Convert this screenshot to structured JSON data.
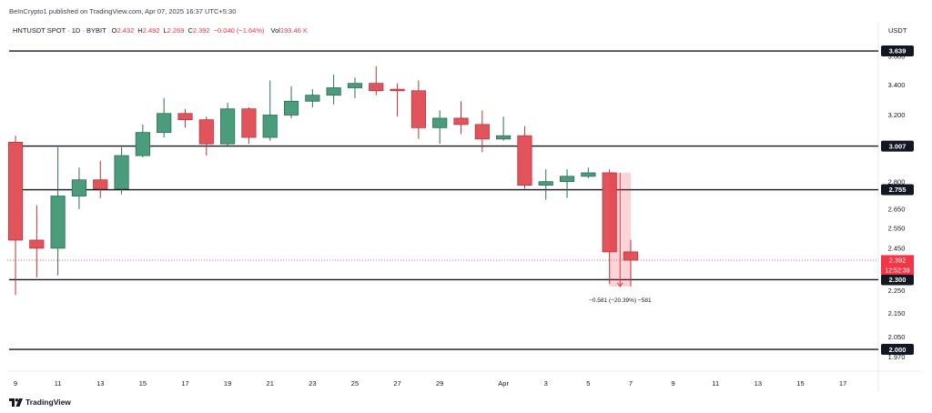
{
  "header": {
    "published_line": "BeInCrypto1 published on TradingView.com, Apr 07, 2025 16:37 UTC+5:30",
    "symbol_line": "HNTUSDT SPOT · 1D · BYBIT",
    "ohlc": [
      {
        "label": "O",
        "value": "2.432"
      },
      {
        "label": "H",
        "value": "2.492"
      },
      {
        "label": "L",
        "value": "2.269"
      },
      {
        "label": "C",
        "value": "2.392"
      }
    ],
    "change": "−0.040 (−1.64%)",
    "volume_label": "Vol",
    "volume_value": "193.46 K"
  },
  "price_axis": {
    "currency": "USDT"
  },
  "footer": {
    "brand": "TradingView",
    "logo_icon": "tradingview-logo-icon"
  },
  "colors": {
    "up": "#4a9c7c",
    "up_border": "#2e6e56",
    "down": "#e2545c",
    "down_border": "#b5373e",
    "level_line": "#131722",
    "level_badge": "#131722",
    "last_price": "#f23645",
    "measure": "#f23645",
    "header_value": "#f23645"
  },
  "chart_data": {
    "type": "candlestick",
    "yscale": "log",
    "ylim": [
      1.925,
      3.713
    ],
    "xlim": [
      "2025-03-09",
      "2025-04-18"
    ],
    "grid": false,
    "x_ticks": [
      {
        "date": "2025-03-09",
        "label": "9"
      },
      {
        "date": "2025-03-11",
        "label": "11"
      },
      {
        "date": "2025-03-13",
        "label": "13"
      },
      {
        "date": "2025-03-15",
        "label": "15"
      },
      {
        "date": "2025-03-17",
        "label": "17"
      },
      {
        "date": "2025-03-19",
        "label": "19"
      },
      {
        "date": "2025-03-21",
        "label": "21"
      },
      {
        "date": "2025-03-23",
        "label": "23"
      },
      {
        "date": "2025-03-25",
        "label": "25"
      },
      {
        "date": "2025-03-27",
        "label": "27"
      },
      {
        "date": "2025-03-29",
        "label": "29"
      },
      {
        "date": "2025-04-01",
        "label": "Apr"
      },
      {
        "date": "2025-04-03",
        "label": "3"
      },
      {
        "date": "2025-04-05",
        "label": "5"
      },
      {
        "date": "2025-04-07",
        "label": "7"
      },
      {
        "date": "2025-04-09",
        "label": "9"
      },
      {
        "date": "2025-04-11",
        "label": "11"
      },
      {
        "date": "2025-04-13",
        "label": "13"
      },
      {
        "date": "2025-04-15",
        "label": "15"
      },
      {
        "date": "2025-04-17",
        "label": "17"
      }
    ],
    "y_ticks": [
      "3.600",
      "3.400",
      "3.200",
      "2.800",
      "2.650",
      "2.550",
      "2.450",
      "2.250",
      "2.150",
      "2.050",
      "1.970"
    ],
    "levels": [
      {
        "value": 3.639,
        "label": "3.639"
      },
      {
        "value": 3.007,
        "label": "3.007"
      },
      {
        "value": 2.755,
        "label": "2.755"
      },
      {
        "value": 2.3,
        "label": "2.300"
      },
      {
        "value": 2.0,
        "label": "2.000"
      }
    ],
    "last_price": {
      "value": 2.392,
      "label": "2.392",
      "countdown": "12:52:39"
    },
    "measure": {
      "from_date": "2025-04-06",
      "to_date": "2025-04-07",
      "from": 2.85,
      "to": 2.269,
      "label": "−0.581 (−20.39%) −581"
    },
    "candles": [
      {
        "date": "2025-03-09",
        "open": 3.03,
        "high": 3.07,
        "low": 2.23,
        "close": 2.49
      },
      {
        "date": "2025-03-10",
        "open": 2.49,
        "high": 2.67,
        "low": 2.31,
        "close": 2.45
      },
      {
        "date": "2025-03-11",
        "open": 2.45,
        "high": 3.0,
        "low": 2.32,
        "close": 2.72
      },
      {
        "date": "2025-03-12",
        "open": 2.72,
        "high": 2.88,
        "low": 2.65,
        "close": 2.81
      },
      {
        "date": "2025-03-13",
        "open": 2.81,
        "high": 2.92,
        "low": 2.71,
        "close": 2.76
      },
      {
        "date": "2025-03-14",
        "open": 2.76,
        "high": 3.0,
        "low": 2.73,
        "close": 2.95
      },
      {
        "date": "2025-03-15",
        "open": 2.95,
        "high": 3.14,
        "low": 2.94,
        "close": 3.09
      },
      {
        "date": "2025-03-16",
        "open": 3.09,
        "high": 3.31,
        "low": 3.06,
        "close": 3.21
      },
      {
        "date": "2025-03-17",
        "open": 3.21,
        "high": 3.24,
        "low": 3.12,
        "close": 3.17
      },
      {
        "date": "2025-03-18",
        "open": 3.17,
        "high": 3.19,
        "low": 2.95,
        "close": 3.02
      },
      {
        "date": "2025-03-19",
        "open": 3.02,
        "high": 3.28,
        "low": 3.01,
        "close": 3.24
      },
      {
        "date": "2025-03-20",
        "open": 3.24,
        "high": 3.25,
        "low": 3.02,
        "close": 3.06
      },
      {
        "date": "2025-03-21",
        "open": 3.06,
        "high": 3.43,
        "low": 3.04,
        "close": 3.2
      },
      {
        "date": "2025-03-22",
        "open": 3.2,
        "high": 3.39,
        "low": 3.18,
        "close": 3.29
      },
      {
        "date": "2025-03-23",
        "open": 3.29,
        "high": 3.37,
        "low": 3.25,
        "close": 3.33
      },
      {
        "date": "2025-03-24",
        "open": 3.33,
        "high": 3.47,
        "low": 3.27,
        "close": 3.38
      },
      {
        "date": "2025-03-25",
        "open": 3.38,
        "high": 3.45,
        "low": 3.31,
        "close": 3.41
      },
      {
        "date": "2025-03-26",
        "open": 3.41,
        "high": 3.53,
        "low": 3.33,
        "close": 3.36
      },
      {
        "date": "2025-03-27",
        "open": 3.37,
        "high": 3.41,
        "low": 3.19,
        "close": 3.36
      },
      {
        "date": "2025-03-28",
        "open": 3.36,
        "high": 3.43,
        "low": 3.05,
        "close": 3.12
      },
      {
        "date": "2025-03-29",
        "open": 3.12,
        "high": 3.23,
        "low": 3.02,
        "close": 3.18
      },
      {
        "date": "2025-03-30",
        "open": 3.18,
        "high": 3.29,
        "low": 3.08,
        "close": 3.14
      },
      {
        "date": "2025-03-31",
        "open": 3.14,
        "high": 3.23,
        "low": 2.97,
        "close": 3.05
      },
      {
        "date": "2025-04-01",
        "open": 3.05,
        "high": 3.19,
        "low": 3.04,
        "close": 3.07
      },
      {
        "date": "2025-04-02",
        "open": 3.07,
        "high": 3.13,
        "low": 2.76,
        "close": 2.78
      },
      {
        "date": "2025-04-03",
        "open": 2.78,
        "high": 2.87,
        "low": 2.7,
        "close": 2.8
      },
      {
        "date": "2025-04-04",
        "open": 2.8,
        "high": 2.87,
        "low": 2.71,
        "close": 2.83
      },
      {
        "date": "2025-04-05",
        "open": 2.83,
        "high": 2.88,
        "low": 2.82,
        "close": 2.85
      },
      {
        "date": "2025-04-06",
        "open": 2.85,
        "high": 2.87,
        "low": 2.28,
        "close": 2.432
      },
      {
        "date": "2025-04-07",
        "open": 2.432,
        "high": 2.492,
        "low": 2.269,
        "close": 2.392
      }
    ]
  }
}
